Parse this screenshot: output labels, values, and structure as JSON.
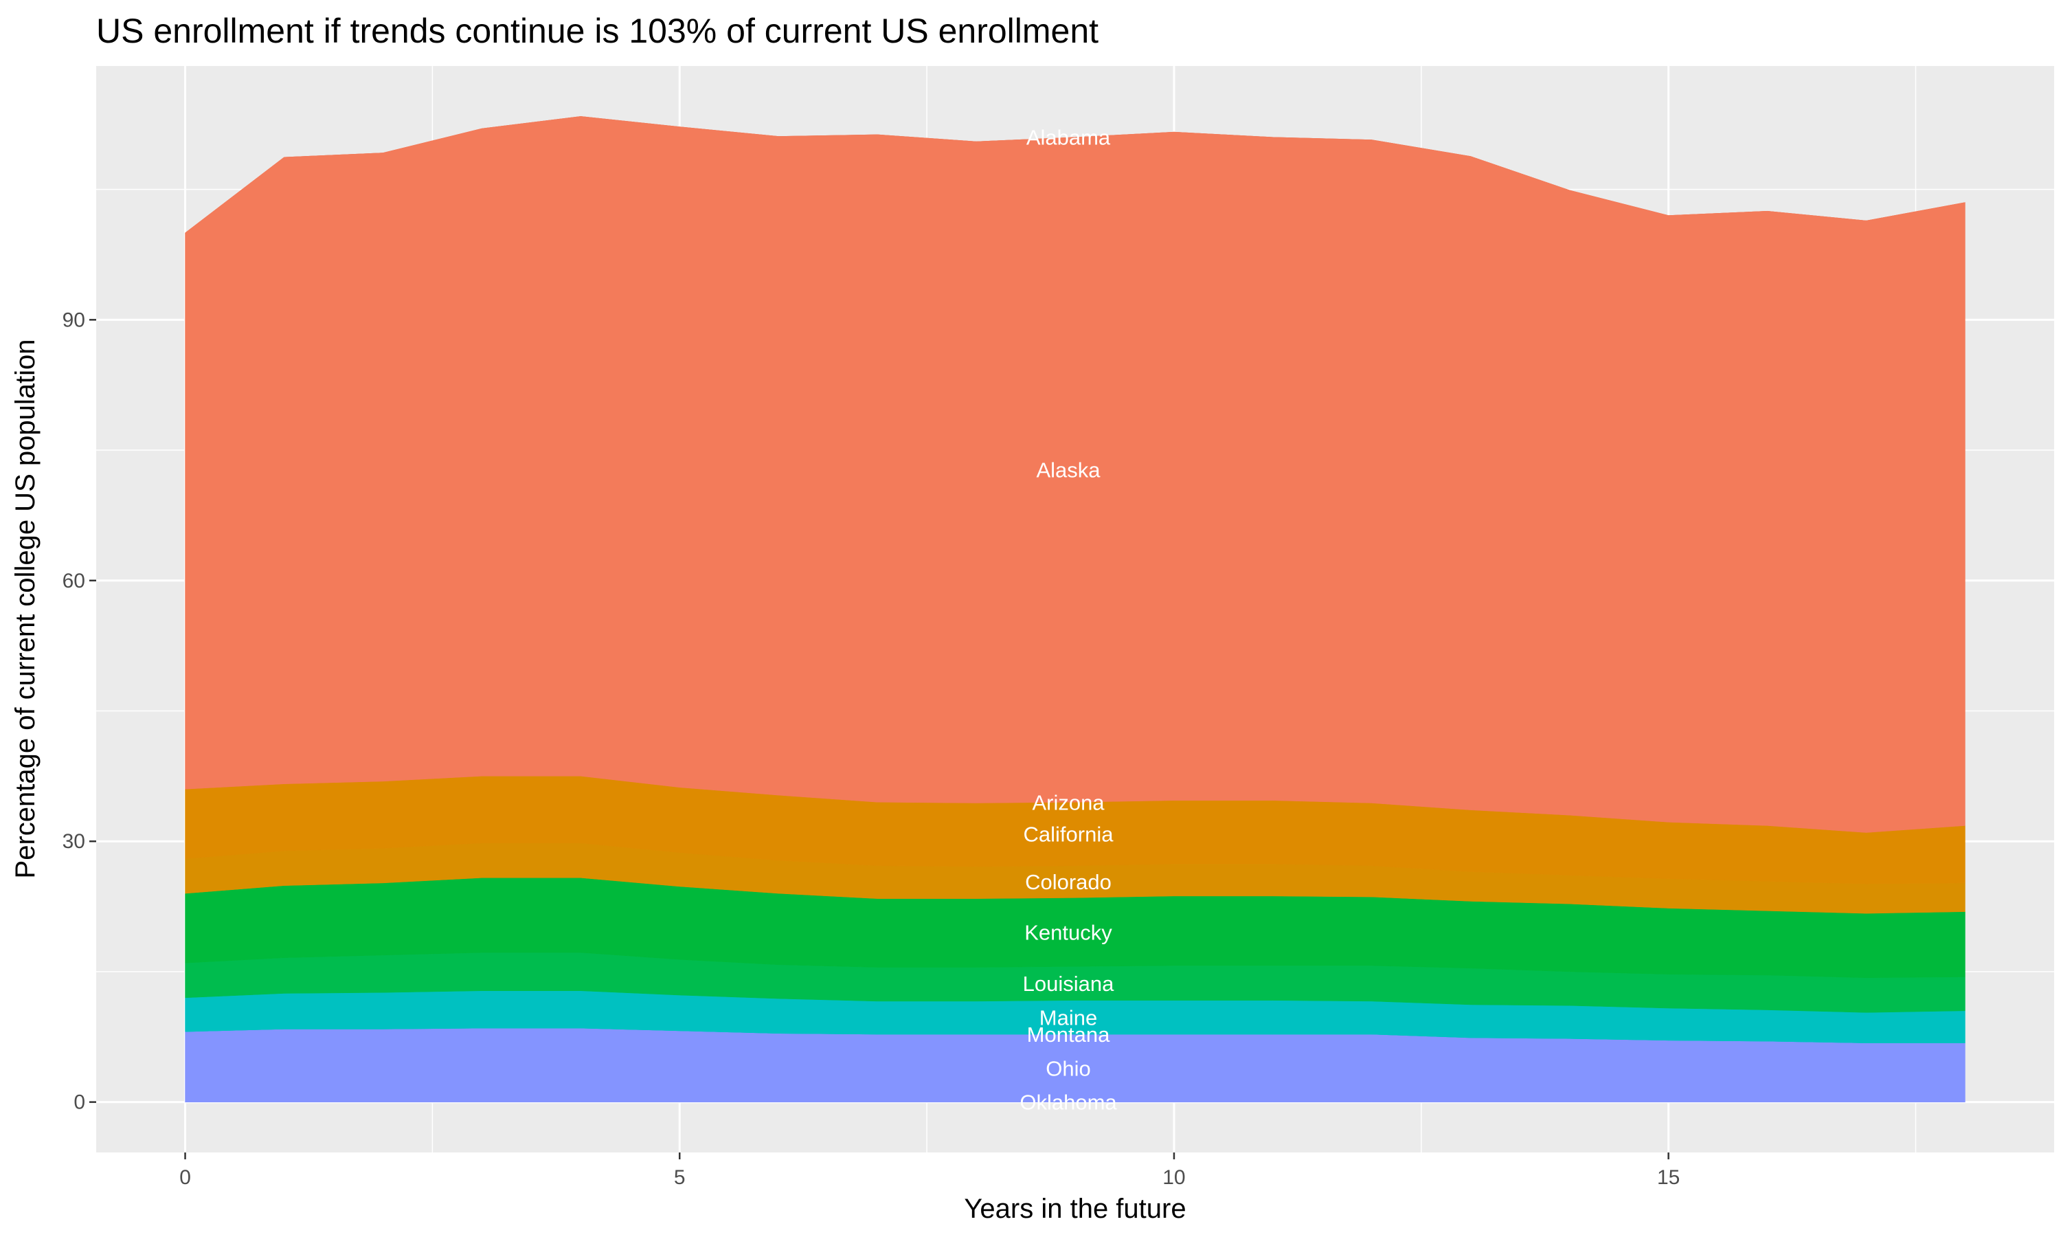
{
  "chart_data": {
    "type": "area",
    "stacked": true,
    "title": "US enrollment if trends continue is 103% of current US enrollment",
    "xlabel": "Years in the future",
    "ylabel": "Percentage of current college US population",
    "xlim": [
      -0.9,
      18.9
    ],
    "ylim": [
      -5.8,
      119.2
    ],
    "x_ticks": [
      0,
      5,
      10,
      15
    ],
    "y_ticks": [
      0,
      30,
      60,
      90
    ],
    "grid": true,
    "legend": "none (labels drawn inside areas at x≈9)",
    "label_x": 9,
    "x": [
      0,
      1,
      2,
      3,
      4,
      5,
      6,
      7,
      8,
      9,
      10,
      11,
      12,
      13,
      14,
      15,
      16,
      17,
      18
    ],
    "series": [
      {
        "name": "Oklahoma",
        "color": "#8494FF",
        "values": [
          0,
          0,
          0,
          0,
          0,
          0,
          0,
          0,
          0,
          0,
          0,
          0,
          0,
          0,
          0,
          0,
          0,
          0,
          0
        ]
      },
      {
        "name": "Ohio",
        "color": "#8494FF",
        "values": [
          8.1,
          8.4,
          8.4,
          8.5,
          8.5,
          8.2,
          7.9,
          7.8,
          7.8,
          7.8,
          7.8,
          7.8,
          7.8,
          7.4,
          7.3,
          7.1,
          7.0,
          6.8,
          6.8
        ]
      },
      {
        "name": "Montana",
        "color": "#00C1C1",
        "values": [
          0,
          0,
          0,
          0,
          0,
          0,
          0,
          0,
          0,
          0,
          0,
          0,
          0,
          0,
          0,
          0,
          0,
          0,
          0
        ]
      },
      {
        "name": "Maine",
        "color": "#00C1C1",
        "values": [
          3.9,
          4.1,
          4.2,
          4.3,
          4.3,
          4.1,
          4.0,
          3.8,
          3.8,
          3.9,
          3.9,
          3.9,
          3.8,
          3.8,
          3.8,
          3.7,
          3.6,
          3.5,
          3.7
        ]
      },
      {
        "name": "Louisiana",
        "color": "#00BC4E",
        "values": [
          4.0,
          4.1,
          4.3,
          4.4,
          4.4,
          4.1,
          3.9,
          3.9,
          3.9,
          3.9,
          4.0,
          4.0,
          4.1,
          4.2,
          3.9,
          3.9,
          4.0,
          4.0,
          3.9
        ]
      },
      {
        "name": "Kentucky",
        "color": "#00B93B",
        "values": [
          8.0,
          8.3,
          8.3,
          8.6,
          8.6,
          8.4,
          8.2,
          7.9,
          7.9,
          7.9,
          8.0,
          8.0,
          7.9,
          7.7,
          7.8,
          7.6,
          7.4,
          7.4,
          7.5
        ]
      },
      {
        "name": "Colorado",
        "color": "#D98F00",
        "values": [
          4.0,
          4.0,
          4.0,
          4.0,
          4.0,
          3.9,
          3.8,
          3.8,
          3.7,
          3.7,
          3.7,
          3.7,
          3.6,
          3.4,
          3.3,
          3.4,
          3.4,
          3.4,
          3.3
        ]
      },
      {
        "name": "California",
        "color": "#DE8B00",
        "values": [
          8.0,
          7.7,
          7.7,
          7.7,
          7.7,
          7.5,
          7.5,
          7.3,
          7.3,
          7.3,
          7.3,
          7.3,
          7.2,
          7.1,
          6.9,
          6.5,
          6.4,
          5.9,
          6.6
        ]
      },
      {
        "name": "Arizona",
        "color": "#DE8B00",
        "values": [
          0,
          0,
          0,
          0,
          0,
          0,
          0,
          0,
          0,
          0,
          0,
          0,
          0,
          0,
          0,
          0,
          0,
          0,
          0
        ]
      },
      {
        "name": "Alaska",
        "color": "#F37B5A",
        "values": [
          64.0,
          72.1,
          72.3,
          74.5,
          75.9,
          76.0,
          75.8,
          76.8,
          76.1,
          76.5,
          76.9,
          76.3,
          76.3,
          75.2,
          71.9,
          69.8,
          70.7,
          70.4,
          71.7
        ]
      },
      {
        "name": "Alabama",
        "color": "#F37B5A",
        "values": [
          0,
          0,
          0,
          0,
          0,
          0,
          0,
          0,
          0,
          0,
          0,
          0,
          0,
          0,
          0,
          0,
          0,
          0,
          0
        ]
      }
    ],
    "panel_background": "#EBEBEB",
    "grid_color": "#FFFFFF"
  }
}
